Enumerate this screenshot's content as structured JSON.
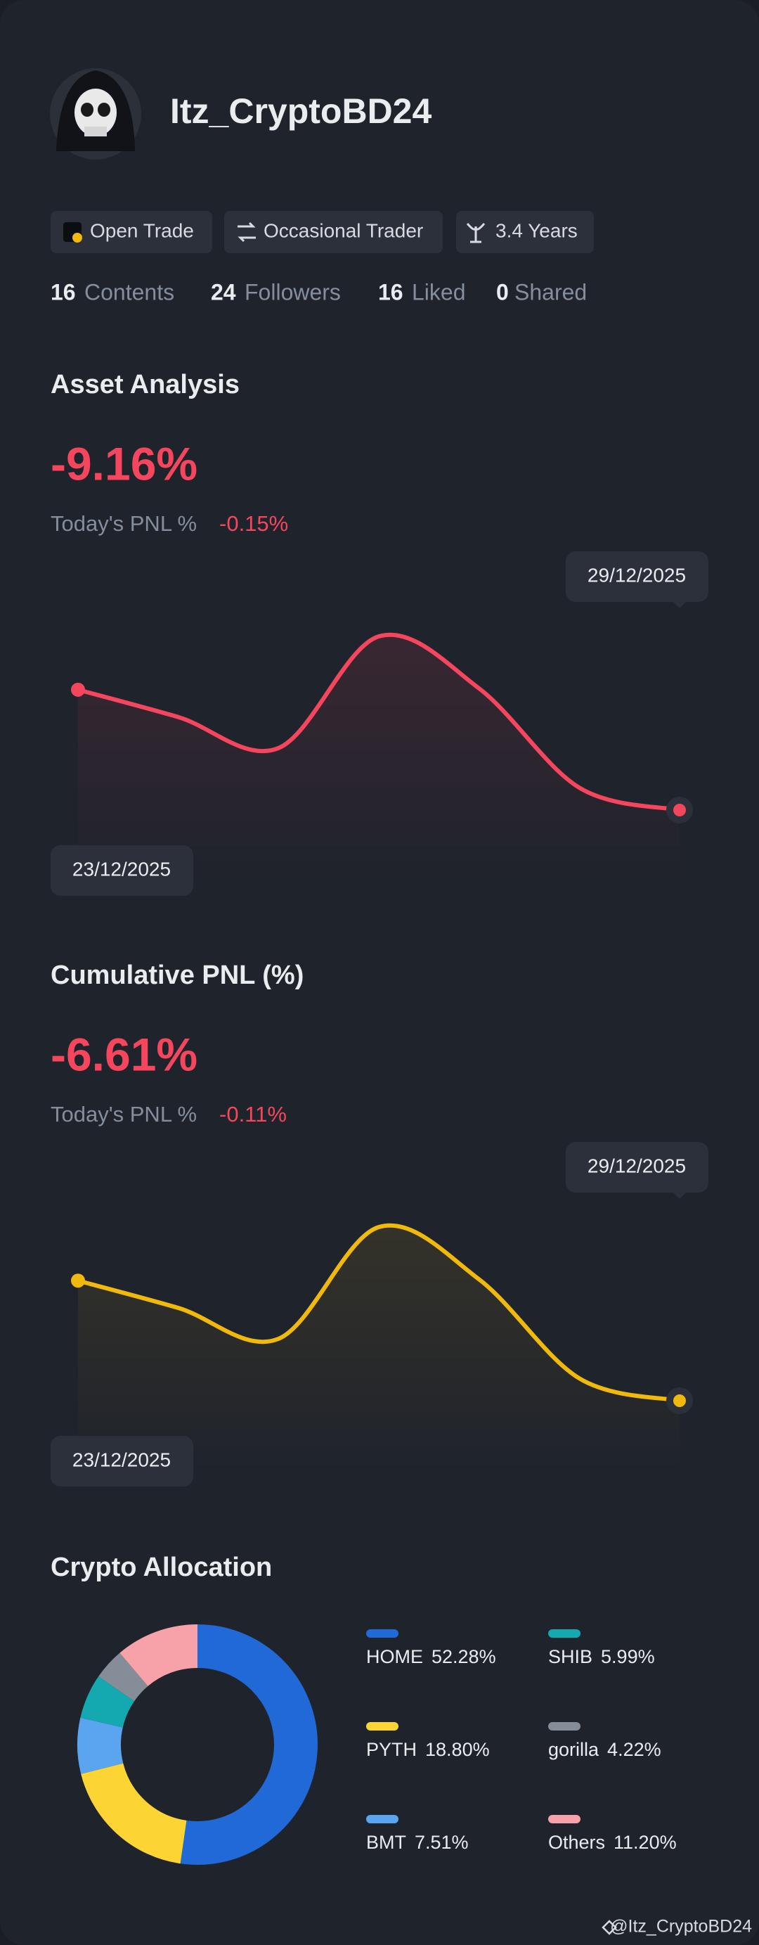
{
  "profile": {
    "username": "Itz_CryptoBD24",
    "badges": [
      "Open Trade",
      "Occasional Trader",
      "3.4 Years"
    ]
  },
  "stats": [
    {
      "value": 16,
      "label": "Contents"
    },
    {
      "value": 24,
      "label": "Followers"
    },
    {
      "value": 16,
      "label": "Liked"
    },
    {
      "value": 0,
      "label": "Shared"
    }
  ],
  "chart_data": [
    {
      "type": "line",
      "title": "Asset Analysis",
      "headline": "-9.16%",
      "today_label": "Today's PNL %",
      "today_value": "-0.15%",
      "categories": [
        "23/12/2025",
        null,
        null,
        null,
        null,
        null,
        "29/12/2025"
      ],
      "values": [
        0,
        -2.08,
        -4.44,
        4.06,
        0.1,
        -7.46,
        -9.16
      ],
      "color": "#f6465d"
    },
    {
      "type": "line",
      "title": "Cumulative PNL (%)",
      "headline": "-6.61%",
      "today_label": "Today's PNL %",
      "today_value": "-0.11%",
      "categories": [
        "23/12/2025",
        null,
        null,
        null,
        null,
        null,
        "29/12/2025"
      ],
      "values": [
        0,
        -1.5,
        -3.2,
        2.95,
        0.07,
        -5.38,
        -6.61
      ],
      "color": "#f0b90b"
    },
    {
      "type": "pie",
      "title": "Crypto Allocation",
      "categories": [
        "HOME",
        "PYTH",
        "BMT",
        "SHIB",
        "gorilla",
        "Others"
      ],
      "values": [
        52.28,
        18.8,
        7.51,
        5.99,
        4.22,
        11.2
      ],
      "value_labels": [
        "52.28%",
        "18.80%",
        "7.51%",
        "5.99%",
        "4.22%",
        "11.20%"
      ],
      "colors": [
        "#2169d6",
        "#fcd535",
        "#5aa4f0",
        "#14a8b0",
        "#858d99",
        "#f7a1a8"
      ]
    }
  ],
  "footer": "@Itz_CryptoBD24"
}
